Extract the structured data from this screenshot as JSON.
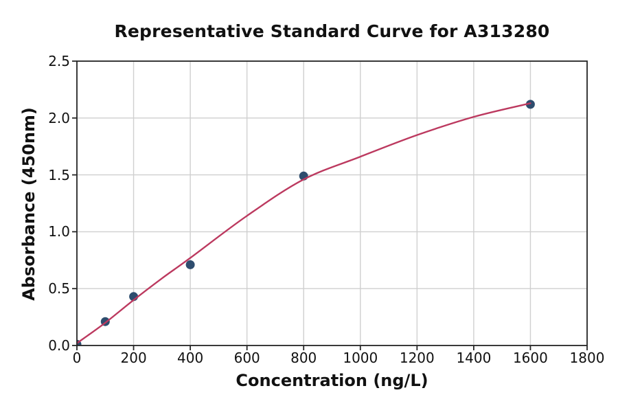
{
  "chart": {
    "title": "Representative Standard Curve for A313280",
    "xlabel": "Concentration (ng/L)",
    "ylabel": "Absorbance (450nm)"
  },
  "chart_data": {
    "type": "scatter",
    "title": "Representative Standard Curve for A313280",
    "xlabel": "Concentration (ng/L)",
    "ylabel": "Absorbance (450nm)",
    "xlim": [
      0,
      1800
    ],
    "ylim": [
      0,
      2.5
    ],
    "grid": true,
    "legend": "none",
    "x_tick_values": [
      0,
      200,
      400,
      600,
      800,
      1000,
      1200,
      1400,
      1600,
      1800
    ],
    "x_tick_labels": [
      "0",
      "200",
      "400",
      "600",
      "800",
      "1000",
      "1200",
      "1400",
      "1600",
      "1800"
    ],
    "y_tick_values": [
      0,
      0.5,
      1.0,
      1.5,
      2.0,
      2.5
    ],
    "y_tick_labels": [
      "0.0",
      "0.5",
      "1.0",
      "1.5",
      "2.0",
      "2.5"
    ],
    "series": [
      {
        "name": "standard-points",
        "kind": "scatter",
        "color": "#2e4d6e",
        "marker_radius": 6.5,
        "points": [
          [
            0,
            0.01
          ],
          [
            100,
            0.21
          ],
          [
            200,
            0.43
          ],
          [
            400,
            0.71
          ],
          [
            800,
            1.49
          ],
          [
            1600,
            2.12
          ]
        ]
      },
      {
        "name": "fitted-curve",
        "kind": "line",
        "color": "#bc395f",
        "line_width": 2.4,
        "points": [
          [
            0,
            0.02
          ],
          [
            100,
            0.2
          ],
          [
            200,
            0.4
          ],
          [
            300,
            0.59
          ],
          [
            400,
            0.77
          ],
          [
            600,
            1.14
          ],
          [
            800,
            1.46
          ],
          [
            1000,
            1.66
          ],
          [
            1200,
            1.85
          ],
          [
            1400,
            2.01
          ],
          [
            1600,
            2.13
          ]
        ]
      }
    ],
    "colors": {
      "grid": "#cfcfcf",
      "spine": "#262626",
      "tick": "#262626",
      "text": "#111111",
      "background": "#ffffff"
    }
  }
}
